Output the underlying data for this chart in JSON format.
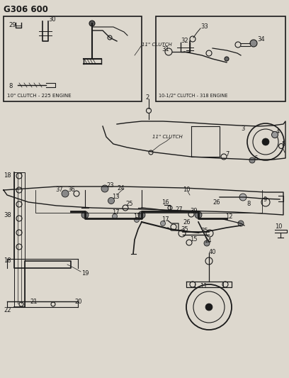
{
  "title": "G306 600",
  "bg_color": "#ddd8ce",
  "line_color": "#1a1a1a",
  "box1_label": "10\" CLUTCH - 225 ENGINE",
  "box2_label": "10-1/2\" CLUTCH - 318 ENGINE",
  "label_11clutch": "11\" CLUTCH",
  "figsize": [
    4.08,
    5.33
  ],
  "dpi": 100,
  "title_fontsize": 8.5,
  "label_fontsize": 5.0,
  "part_fontsize": 6.0
}
